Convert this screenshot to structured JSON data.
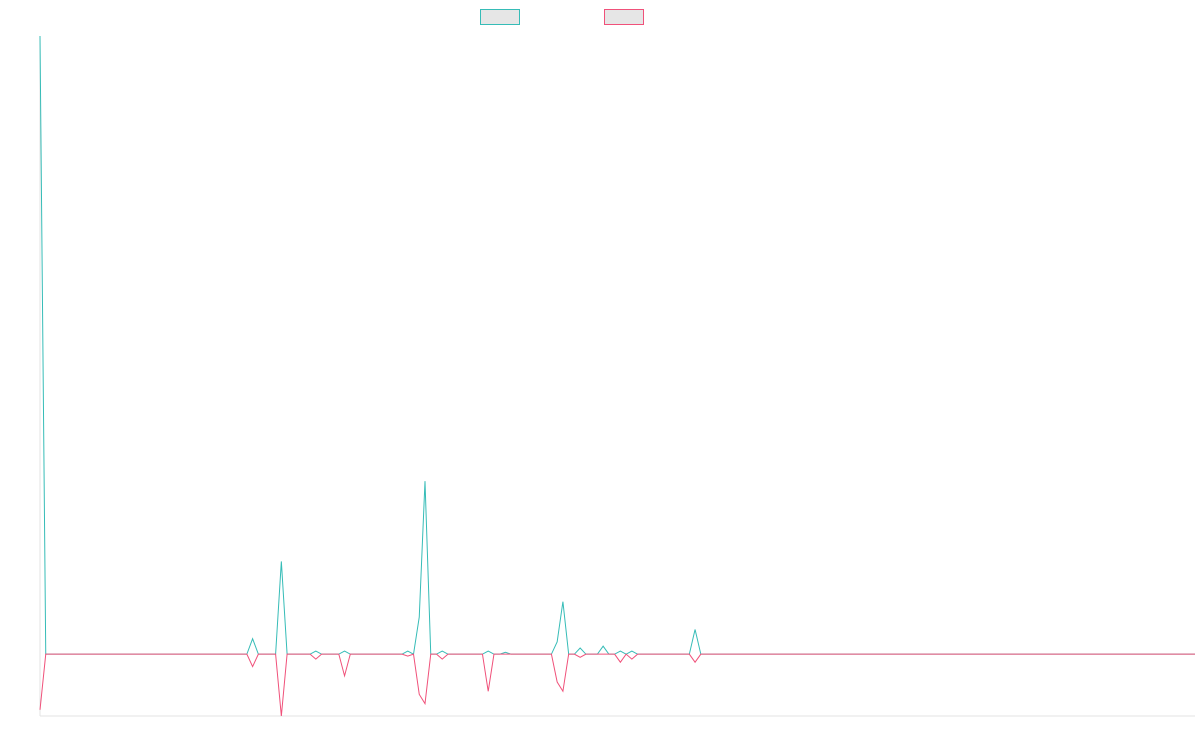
{
  "chart_data": {
    "type": "line",
    "title": "",
    "xlabel": "",
    "ylabel": "",
    "x_count": 202,
    "ylim": [
      -10,
      100
    ],
    "grid": false,
    "legend_placement": "top-center",
    "series": [
      {
        "color": "#36bcb7",
        "fill": "#e6e6e6",
        "points": [
          [
            0,
            100
          ],
          [
            1,
            0
          ],
          [
            36,
            0
          ],
          [
            37,
            2.5
          ],
          [
            38,
            0
          ],
          [
            41,
            0
          ],
          [
            42,
            15
          ],
          [
            43,
            0
          ],
          [
            47,
            0
          ],
          [
            48,
            0.5
          ],
          [
            49,
            0
          ],
          [
            52,
            0
          ],
          [
            53,
            0.5
          ],
          [
            54,
            0
          ],
          [
            63,
            0
          ],
          [
            64,
            0.5
          ],
          [
            65,
            0
          ],
          [
            66,
            6
          ],
          [
            67,
            28
          ],
          [
            68,
            0
          ],
          [
            69,
            0
          ],
          [
            70,
            0.5
          ],
          [
            71,
            0
          ],
          [
            77,
            0
          ],
          [
            78,
            0.5
          ],
          [
            79,
            0
          ],
          [
            80,
            0
          ],
          [
            81,
            0.3
          ],
          [
            82,
            0
          ],
          [
            89,
            0
          ],
          [
            90,
            2
          ],
          [
            91,
            8.5
          ],
          [
            92,
            0
          ],
          [
            93,
            0
          ],
          [
            94,
            1
          ],
          [
            95,
            0
          ],
          [
            97,
            0
          ],
          [
            98,
            1.3
          ],
          [
            99,
            0
          ],
          [
            100,
            0
          ],
          [
            101,
            0.5
          ],
          [
            102,
            0
          ],
          [
            103,
            0.5
          ],
          [
            104,
            0
          ],
          [
            113,
            0
          ],
          [
            114,
            4
          ],
          [
            115,
            0
          ],
          [
            201,
            0
          ]
        ]
      },
      {
        "color": "#f0517a",
        "fill": "#e6e6e6",
        "points": [
          [
            0,
            -9
          ],
          [
            1,
            0
          ],
          [
            36,
            0
          ],
          [
            37,
            -2
          ],
          [
            38,
            0
          ],
          [
            41,
            0
          ],
          [
            42,
            -10
          ],
          [
            43,
            0
          ],
          [
            47,
            0
          ],
          [
            48,
            -0.8
          ],
          [
            49,
            0
          ],
          [
            52,
            0
          ],
          [
            53,
            -3.5
          ],
          [
            54,
            0
          ],
          [
            63,
            0
          ],
          [
            64,
            -0.3
          ],
          [
            65,
            0
          ],
          [
            66,
            -6.5
          ],
          [
            67,
            -8
          ],
          [
            68,
            0
          ],
          [
            69,
            0
          ],
          [
            70,
            -0.8
          ],
          [
            71,
            0
          ],
          [
            77,
            0
          ],
          [
            78,
            -6
          ],
          [
            79,
            0
          ],
          [
            89,
            0
          ],
          [
            90,
            -4.5
          ],
          [
            91,
            -6
          ],
          [
            92,
            0
          ],
          [
            93,
            0
          ],
          [
            94,
            -0.5
          ],
          [
            95,
            0
          ],
          [
            100,
            0
          ],
          [
            101,
            -1.3
          ],
          [
            102,
            0
          ],
          [
            103,
            -0.8
          ],
          [
            104,
            0
          ],
          [
            113,
            0
          ],
          [
            114,
            -1.3
          ],
          [
            115,
            0
          ],
          [
            201,
            0
          ]
        ]
      }
    ]
  }
}
